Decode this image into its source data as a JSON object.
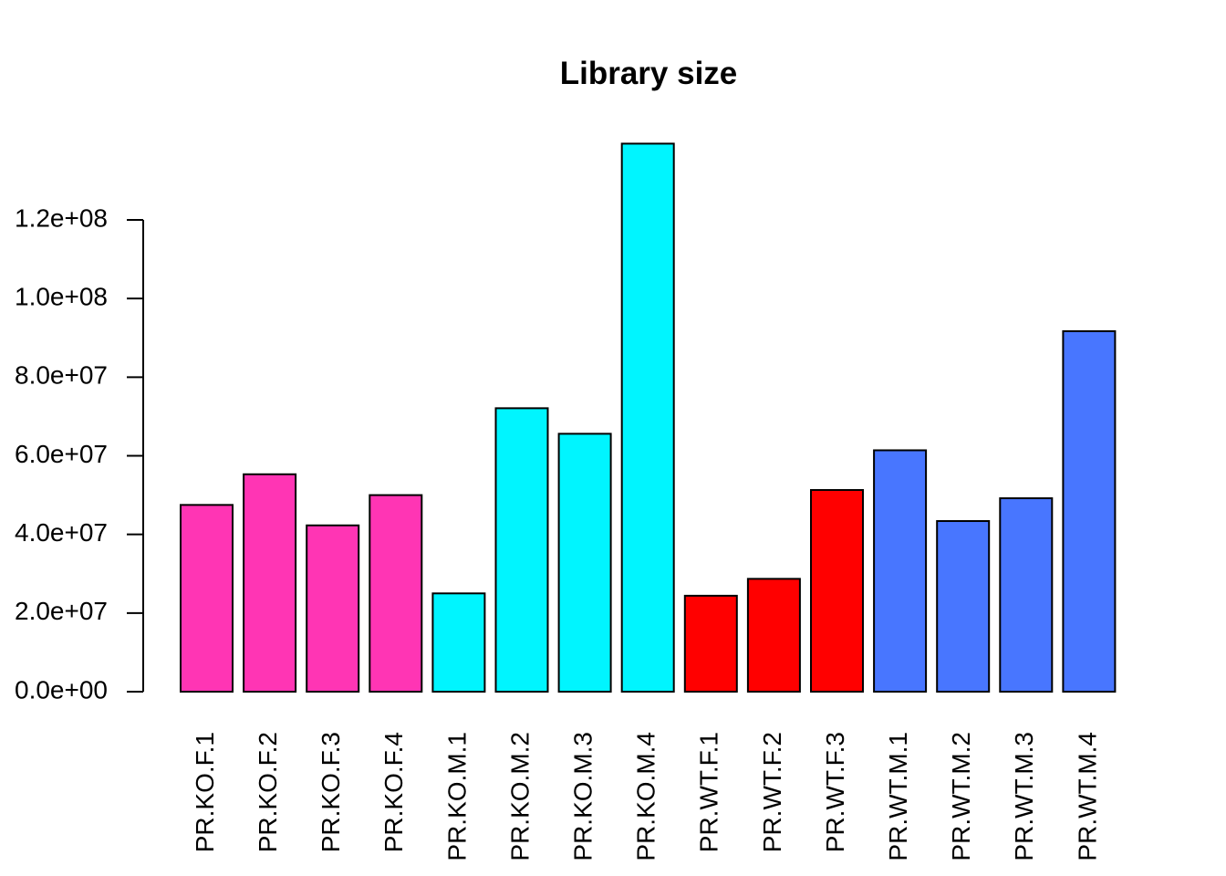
{
  "chart_data": {
    "type": "bar",
    "title": "Library size",
    "xlabel": "",
    "ylabel": "",
    "ylim": [
      0,
      140000000
    ],
    "grid": false,
    "legend": "none",
    "y_ticks": [
      0,
      20000000,
      40000000,
      60000000,
      80000000,
      100000000,
      120000000
    ],
    "y_tick_labels": [
      "0.0e+00",
      "2.0e+07",
      "4.0e+07",
      "6.0e+07",
      "8.0e+07",
      "1.0e+08",
      "1.2e+08"
    ],
    "categories": [
      "PR.KO.F.1",
      "PR.KO.F.2",
      "PR.KO.F.3",
      "PR.KO.F.4",
      "PR.KO.M.1",
      "PR.KO.M.2",
      "PR.KO.M.3",
      "PR.KO.M.4",
      "PR.WT.F.1",
      "PR.WT.F.2",
      "PR.WT.F.3",
      "PR.WT.M.1",
      "PR.WT.M.2",
      "PR.WT.M.3",
      "PR.WT.M.4"
    ],
    "values": [
      47500000,
      55300000,
      42300000,
      50000000,
      25000000,
      72100000,
      65600000,
      139400000,
      24400000,
      28700000,
      51300000,
      61400000,
      43400000,
      49200000,
      91700000
    ],
    "colors": [
      "#FF35B4",
      "#FF35B4",
      "#FF35B4",
      "#FF35B4",
      "#00F5FF",
      "#00F5FF",
      "#00F5FF",
      "#00F5FF",
      "#FF0000",
      "#FF0000",
      "#FF0000",
      "#4876FF",
      "#4876FF",
      "#4876FF",
      "#4876FF"
    ]
  }
}
